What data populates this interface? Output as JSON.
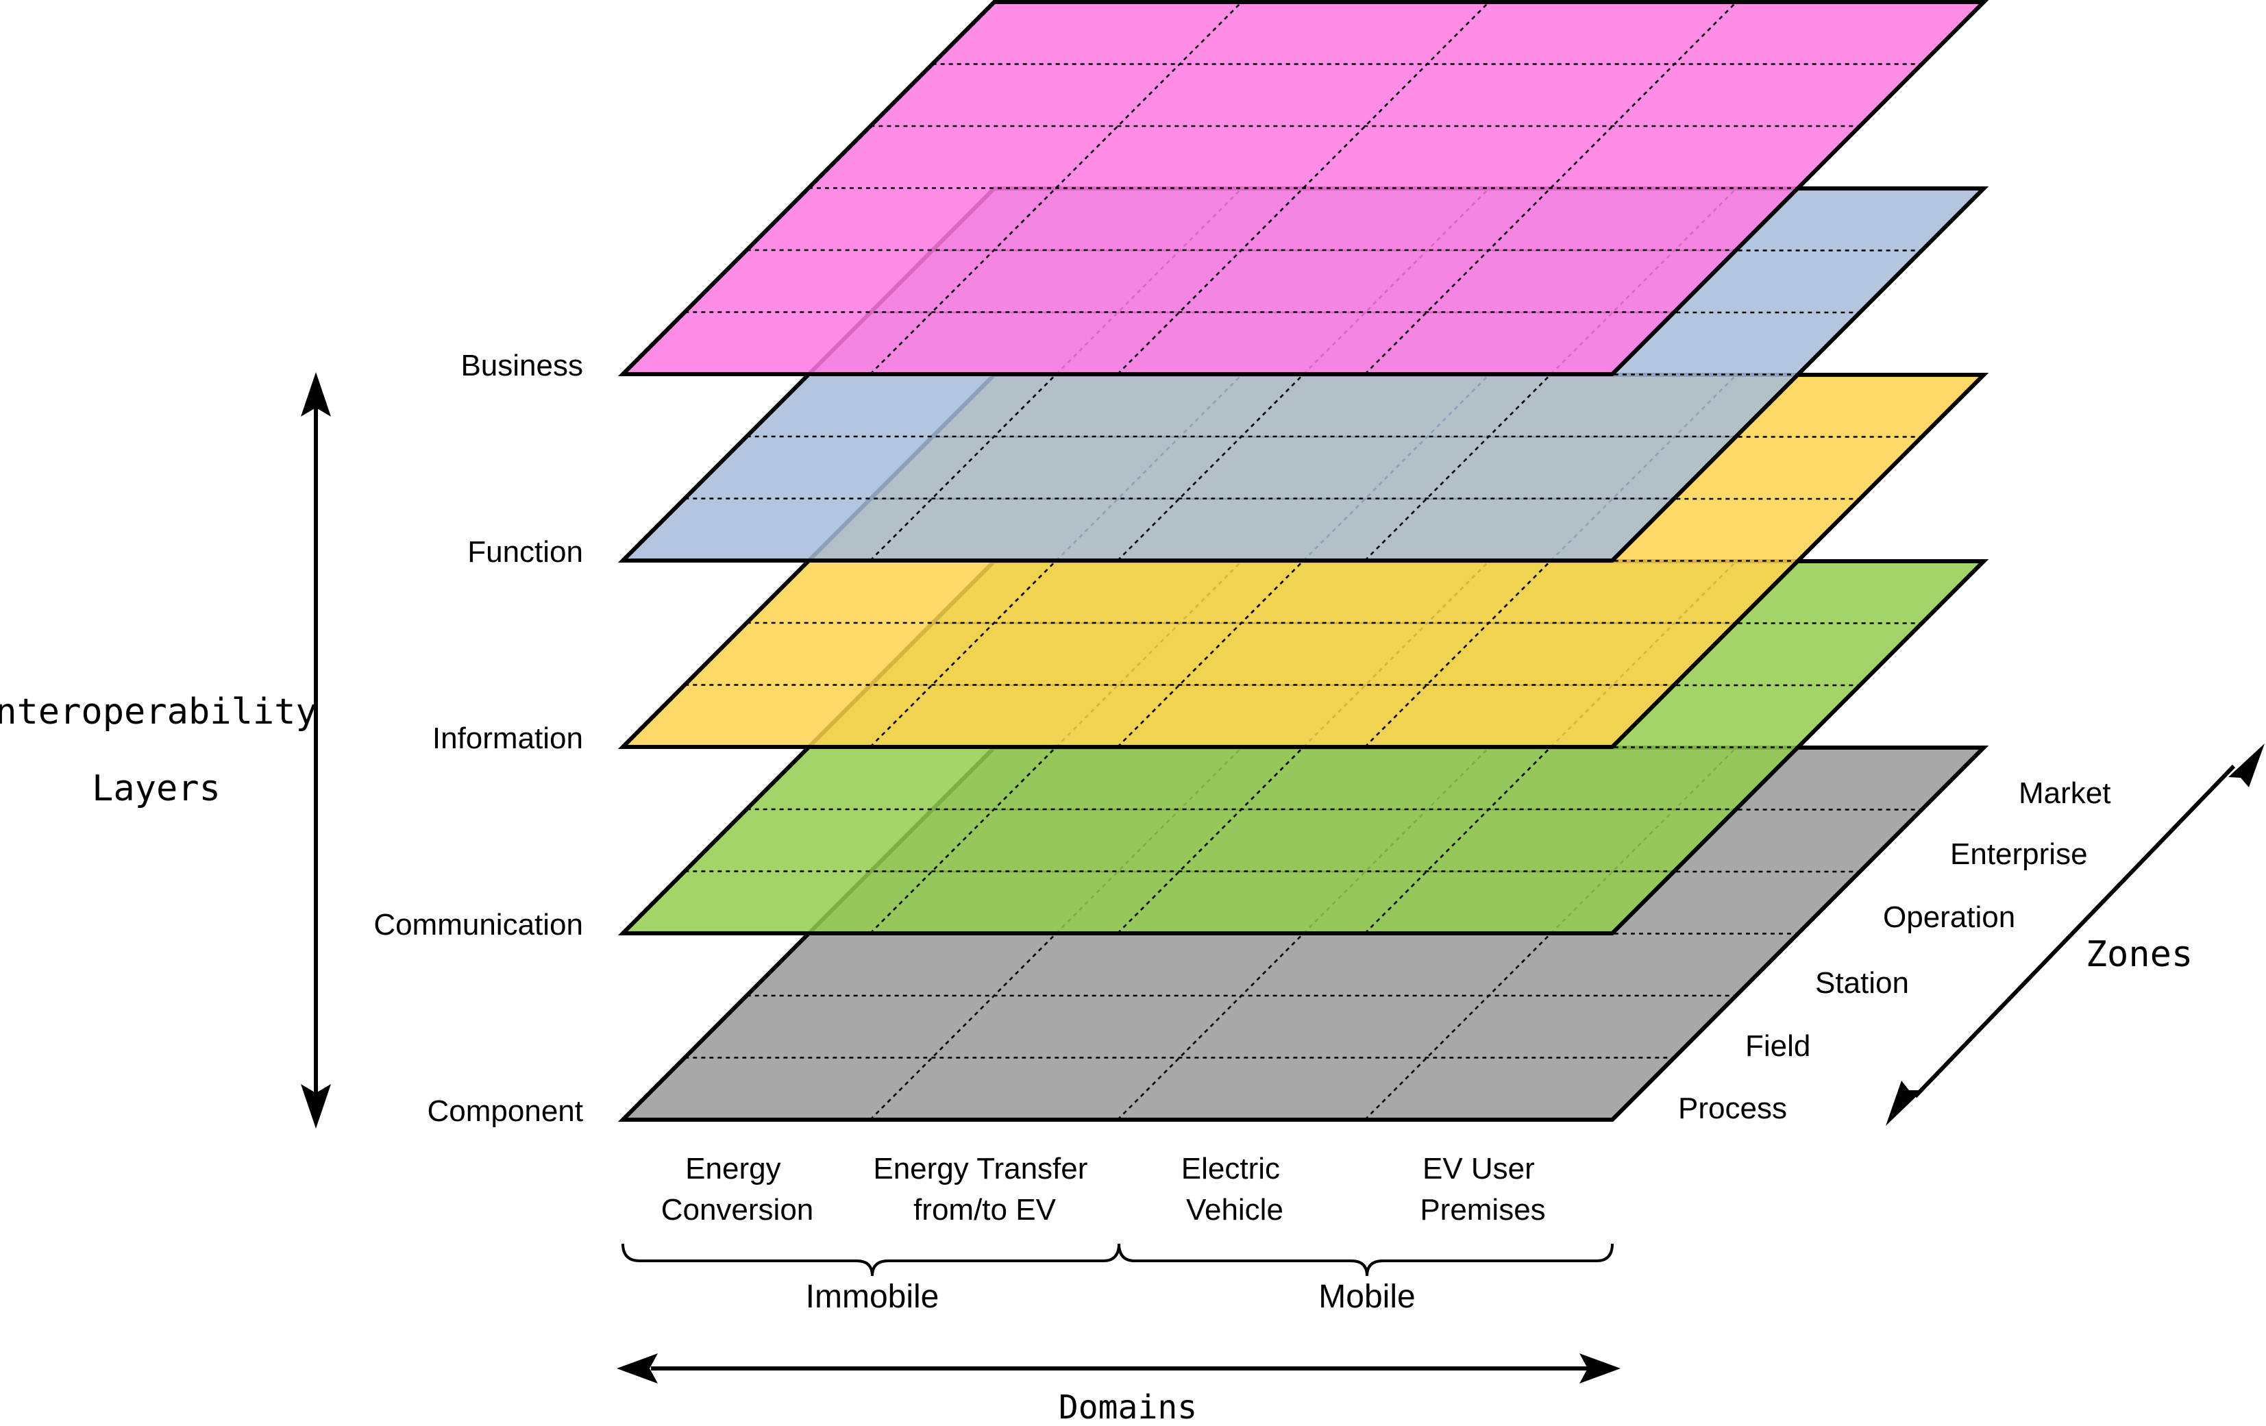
{
  "layers": [
    {
      "key": "component",
      "label": "Component",
      "color": "#999999"
    },
    {
      "key": "communication",
      "label": "Communication",
      "color": "#92CC4C"
    },
    {
      "key": "information",
      "label": "Information",
      "color": "#FDD24E"
    },
    {
      "key": "function",
      "label": "Function",
      "color": "#A6BBD9"
    },
    {
      "key": "business",
      "label": "Business",
      "color": "#FF79E4"
    }
  ],
  "domains": [
    {
      "line1": "Energy",
      "line2": "Conversion"
    },
    {
      "line1": "Energy Transfer",
      "line2": "from/to EV"
    },
    {
      "line1": "Electric",
      "line2": "Vehicle"
    },
    {
      "line1": "EV User",
      "line2": "Premises"
    }
  ],
  "domain_groups": [
    "Immobile",
    "Mobile"
  ],
  "zones": [
    "Process",
    "Field",
    "Station",
    "Operation",
    "Enterprise",
    "Market"
  ],
  "axis_labels": {
    "layers_line1": "Interoperability",
    "layers_line2": "Layers",
    "domains": "Domains",
    "zones": "Zones"
  }
}
